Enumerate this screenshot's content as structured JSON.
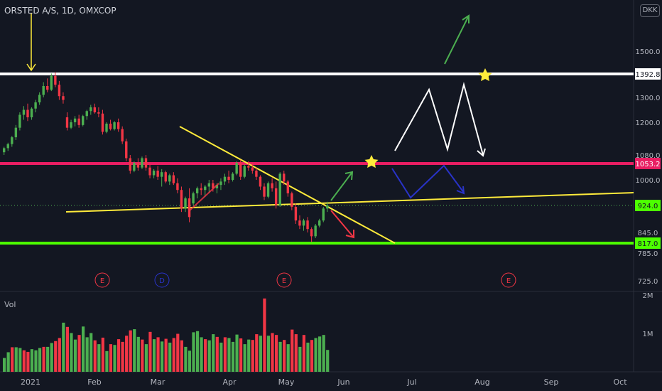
{
  "header": {
    "symbol": "ORSTED A/S, 1D, OMXCOP",
    "currency": "DKK"
  },
  "volume_label": "Vol",
  "colors": {
    "up": "#4caf50",
    "down": "#f23645",
    "white_level": "#ffffff",
    "magenta_level": "#e91e63",
    "green_level": "#4cff00",
    "trendline": "#ffeb3b"
  },
  "chart_data": {
    "type": "candlestick",
    "price_axis": {
      "ticks": [
        "1500.0",
        "1300.0",
        "1200.0",
        "1080.0",
        "1000.0",
        "845.0",
        "785.0",
        "725.0"
      ],
      "tick_values": [
        1500,
        1300,
        1200,
        1080,
        1000,
        845,
        785,
        725
      ],
      "range": [
        700,
        1640
      ]
    },
    "volume_axis": {
      "ticks": [
        "2M",
        "1M"
      ],
      "tick_values": [
        2000000,
        1000000
      ]
    },
    "x_axis": {
      "labels": [
        "2021",
        "Feb",
        "Mar",
        "Apr",
        "May",
        "Jun",
        "Jul",
        "Aug",
        "Sep",
        "Oct"
      ]
    },
    "levels": [
      {
        "label": "1392.8",
        "value": 1392.8,
        "style": "white"
      },
      {
        "label": "1053.2",
        "value": 1053.2,
        "style": "magenta"
      },
      {
        "label": "924.0",
        "value": 924.0,
        "style": "last"
      },
      {
        "label": "817.0",
        "value": 817.0,
        "style": "green"
      }
    ],
    "events": [
      "E",
      "D",
      "E",
      "E"
    ],
    "candles": [
      [
        1090,
        1110,
        1080,
        1105
      ],
      [
        1105,
        1125,
        1095,
        1120
      ],
      [
        1120,
        1150,
        1110,
        1145
      ],
      [
        1145,
        1190,
        1135,
        1180
      ],
      [
        1180,
        1240,
        1170,
        1230
      ],
      [
        1230,
        1265,
        1210,
        1250
      ],
      [
        1250,
        1275,
        1205,
        1220
      ],
      [
        1220,
        1260,
        1210,
        1255
      ],
      [
        1255,
        1290,
        1240,
        1280
      ],
      [
        1280,
        1320,
        1270,
        1310
      ],
      [
        1310,
        1360,
        1300,
        1345
      ],
      [
        1345,
        1375,
        1320,
        1330
      ],
      [
        1330,
        1395,
        1325,
        1385
      ],
      [
        1385,
        1400,
        1340,
        1350
      ],
      [
        1350,
        1365,
        1290,
        1305
      ],
      [
        1305,
        1320,
        1275,
        1290
      ],
      [
        1220,
        1240,
        1170,
        1180
      ],
      [
        1180,
        1210,
        1175,
        1200
      ],
      [
        1200,
        1225,
        1185,
        1215
      ],
      [
        1215,
        1230,
        1180,
        1190
      ],
      [
        1190,
        1230,
        1185,
        1225
      ],
      [
        1225,
        1250,
        1210,
        1245
      ],
      [
        1245,
        1270,
        1230,
        1260
      ],
      [
        1260,
        1275,
        1235,
        1240
      ],
      [
        1240,
        1260,
        1220,
        1235
      ],
      [
        1235,
        1250,
        1155,
        1165
      ],
      [
        1165,
        1200,
        1160,
        1195
      ],
      [
        1195,
        1210,
        1170,
        1175
      ],
      [
        1175,
        1205,
        1170,
        1200
      ],
      [
        1200,
        1215,
        1165,
        1175
      ],
      [
        1175,
        1185,
        1120,
        1130
      ],
      [
        1130,
        1140,
        1060,
        1070
      ],
      [
        1070,
        1080,
        1020,
        1030
      ],
      [
        1030,
        1060,
        1025,
        1055
      ],
      [
        1055,
        1070,
        1030,
        1040
      ],
      [
        1040,
        1075,
        1035,
        1070
      ],
      [
        1070,
        1080,
        1030,
        1040
      ],
      [
        1040,
        1050,
        1005,
        1015
      ],
      [
        1015,
        1035,
        1005,
        1030
      ],
      [
        1030,
        1045,
        1000,
        1010
      ],
      [
        1010,
        1035,
        980,
        1025
      ],
      [
        1025,
        1030,
        990,
        995
      ],
      [
        995,
        1020,
        985,
        1015
      ],
      [
        1015,
        1025,
        985,
        990
      ],
      [
        990,
        1005,
        960,
        970
      ],
      [
        970,
        980,
        905,
        915
      ],
      [
        915,
        950,
        905,
        945
      ],
      [
        945,
        975,
        875,
        890
      ],
      [
        930,
        965,
        925,
        960
      ],
      [
        960,
        980,
        945,
        975
      ],
      [
        975,
        990,
        955,
        970
      ],
      [
        970,
        985,
        950,
        980
      ],
      [
        980,
        1000,
        960,
        990
      ],
      [
        990,
        1000,
        965,
        975
      ],
      [
        975,
        990,
        960,
        985
      ],
      [
        985,
        1005,
        970,
        995
      ],
      [
        995,
        1020,
        985,
        1010
      ],
      [
        1010,
        1030,
        990,
        1000
      ],
      [
        1000,
        1025,
        995,
        1020
      ],
      [
        1020,
        1060,
        1015,
        1055
      ],
      [
        1055,
        1065,
        1000,
        1010
      ],
      [
        1010,
        1050,
        1005,
        1045
      ],
      [
        1045,
        1060,
        1030,
        1040
      ],
      [
        1040,
        1055,
        1020,
        1030
      ],
      [
        1030,
        1040,
        1000,
        1010
      ],
      [
        1010,
        1015,
        970,
        980
      ],
      [
        980,
        990,
        940,
        950
      ],
      [
        950,
        995,
        945,
        990
      ],
      [
        990,
        1005,
        965,
        975
      ],
      [
        975,
        995,
        915,
        925
      ],
      [
        925,
        1025,
        920,
        1020
      ],
      [
        1020,
        1030,
        985,
        995
      ],
      [
        995,
        1000,
        950,
        960
      ],
      [
        960,
        965,
        910,
        920
      ],
      [
        920,
        930,
        870,
        880
      ],
      [
        880,
        895,
        855,
        865
      ],
      [
        865,
        885,
        850,
        880
      ],
      [
        880,
        890,
        845,
        855
      ],
      [
        855,
        860,
        820,
        835
      ],
      [
        835,
        870,
        830,
        865
      ],
      [
        865,
        885,
        860,
        880
      ],
      [
        880,
        920,
        875,
        915
      ],
      [
        915,
        935,
        905,
        924
      ]
    ],
    "volumes": [
      [
        360000,
        1
      ],
      [
        510000,
        1
      ],
      [
        640000,
        0
      ],
      [
        640000,
        1
      ],
      [
        620000,
        1
      ],
      [
        560000,
        0
      ],
      [
        520000,
        0
      ],
      [
        590000,
        1
      ],
      [
        560000,
        1
      ],
      [
        620000,
        1
      ],
      [
        650000,
        0
      ],
      [
        650000,
        1
      ],
      [
        750000,
        1
      ],
      [
        800000,
        0
      ],
      [
        880000,
        0
      ],
      [
        1280000,
        1
      ],
      [
        1170000,
        0
      ],
      [
        1010000,
        1
      ],
      [
        840000,
        1
      ],
      [
        960000,
        0
      ],
      [
        1180000,
        1
      ],
      [
        900000,
        1
      ],
      [
        1010000,
        1
      ],
      [
        820000,
        0
      ],
      [
        720000,
        1
      ],
      [
        890000,
        0
      ],
      [
        540000,
        1
      ],
      [
        720000,
        0
      ],
      [
        700000,
        1
      ],
      [
        850000,
        0
      ],
      [
        780000,
        0
      ],
      [
        940000,
        0
      ],
      [
        1080000,
        0
      ],
      [
        1110000,
        1
      ],
      [
        910000,
        1
      ],
      [
        840000,
        0
      ],
      [
        720000,
        1
      ],
      [
        1040000,
        0
      ],
      [
        850000,
        1
      ],
      [
        900000,
        0
      ],
      [
        790000,
        1
      ],
      [
        860000,
        0
      ],
      [
        760000,
        1
      ],
      [
        880000,
        0
      ],
      [
        990000,
        0
      ],
      [
        820000,
        0
      ],
      [
        650000,
        1
      ],
      [
        550000,
        1
      ],
      [
        1030000,
        1
      ],
      [
        1060000,
        1
      ],
      [
        900000,
        1
      ],
      [
        850000,
        0
      ],
      [
        820000,
        1
      ],
      [
        980000,
        1
      ],
      [
        910000,
        0
      ],
      [
        760000,
        1
      ],
      [
        900000,
        0
      ],
      [
        880000,
        1
      ],
      [
        780000,
        1
      ],
      [
        970000,
        1
      ],
      [
        870000,
        0
      ],
      [
        720000,
        1
      ],
      [
        840000,
        1
      ],
      [
        830000,
        0
      ],
      [
        980000,
        0
      ],
      [
        940000,
        1
      ],
      [
        1910000,
        0
      ],
      [
        940000,
        1
      ],
      [
        1010000,
        0
      ],
      [
        960000,
        0
      ],
      [
        780000,
        1
      ],
      [
        830000,
        0
      ],
      [
        720000,
        1
      ],
      [
        1100000,
        0
      ],
      [
        980000,
        0
      ],
      [
        650000,
        1
      ],
      [
        960000,
        0
      ],
      [
        760000,
        1
      ],
      [
        830000,
        0
      ],
      [
        880000,
        1
      ],
      [
        920000,
        1
      ],
      [
        960000,
        1
      ],
      [
        570000,
        1
      ]
    ]
  }
}
